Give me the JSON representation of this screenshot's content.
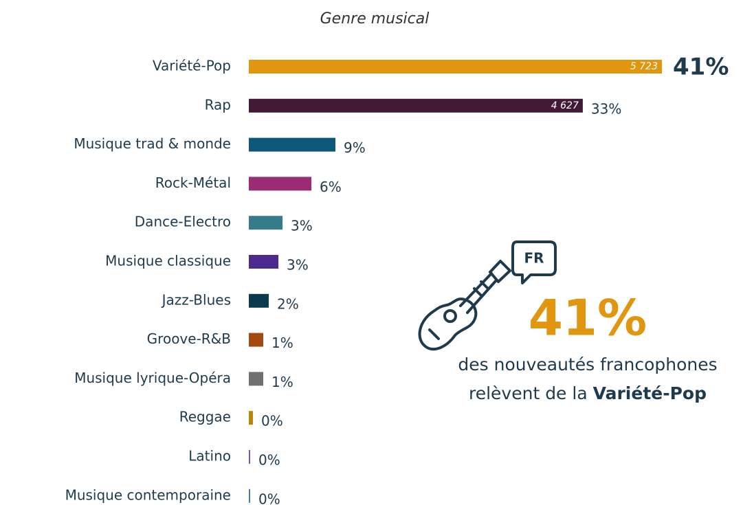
{
  "chart_data": {
    "type": "barh",
    "title": "Genre musical",
    "categories": [
      "Variété-Pop",
      "Rap",
      "Musique trad & monde",
      "Rock-Métal",
      "Dance-Electro",
      "Musique classique",
      "Jazz-Blues",
      "Groove-R&B",
      "Musique lyrique-Opéra",
      "Reggae",
      "Latino",
      "Musique contemporaine"
    ],
    "values": [
      5723,
      4627,
      1200,
      867,
      467,
      410,
      276,
      200,
      200,
      57,
      19,
      19
    ],
    "colors": [
      "#e0960f",
      "#421a35",
      "#0d5878",
      "#9b2b74",
      "#357c8a",
      "#4b2a8c",
      "#0b3a4e",
      "#a34b0f",
      "#707070",
      "#b8860b",
      "#7a5aa8",
      "#4a78a8"
    ],
    "count_labels": [
      {
        "value": 5723,
        "label": "5 723"
      },
      {
        "value": 4627,
        "label": "4 627"
      }
    ],
    "shares": [
      41,
      33,
      9,
      6,
      3,
      3,
      2,
      1,
      1,
      0,
      0,
      0
    ],
    "share_labels": [
      "41%",
      "33%",
      "9%",
      "6%",
      "3%",
      "3%",
      "2%",
      "1%",
      "1%",
      "0%",
      "0%",
      "0%"
    ]
  },
  "callout": {
    "icon_label": "FR",
    "value": "41%",
    "line1": "des nouveautés francophones",
    "line2": "relèvent de la ",
    "highlight": "Variété-Pop"
  }
}
